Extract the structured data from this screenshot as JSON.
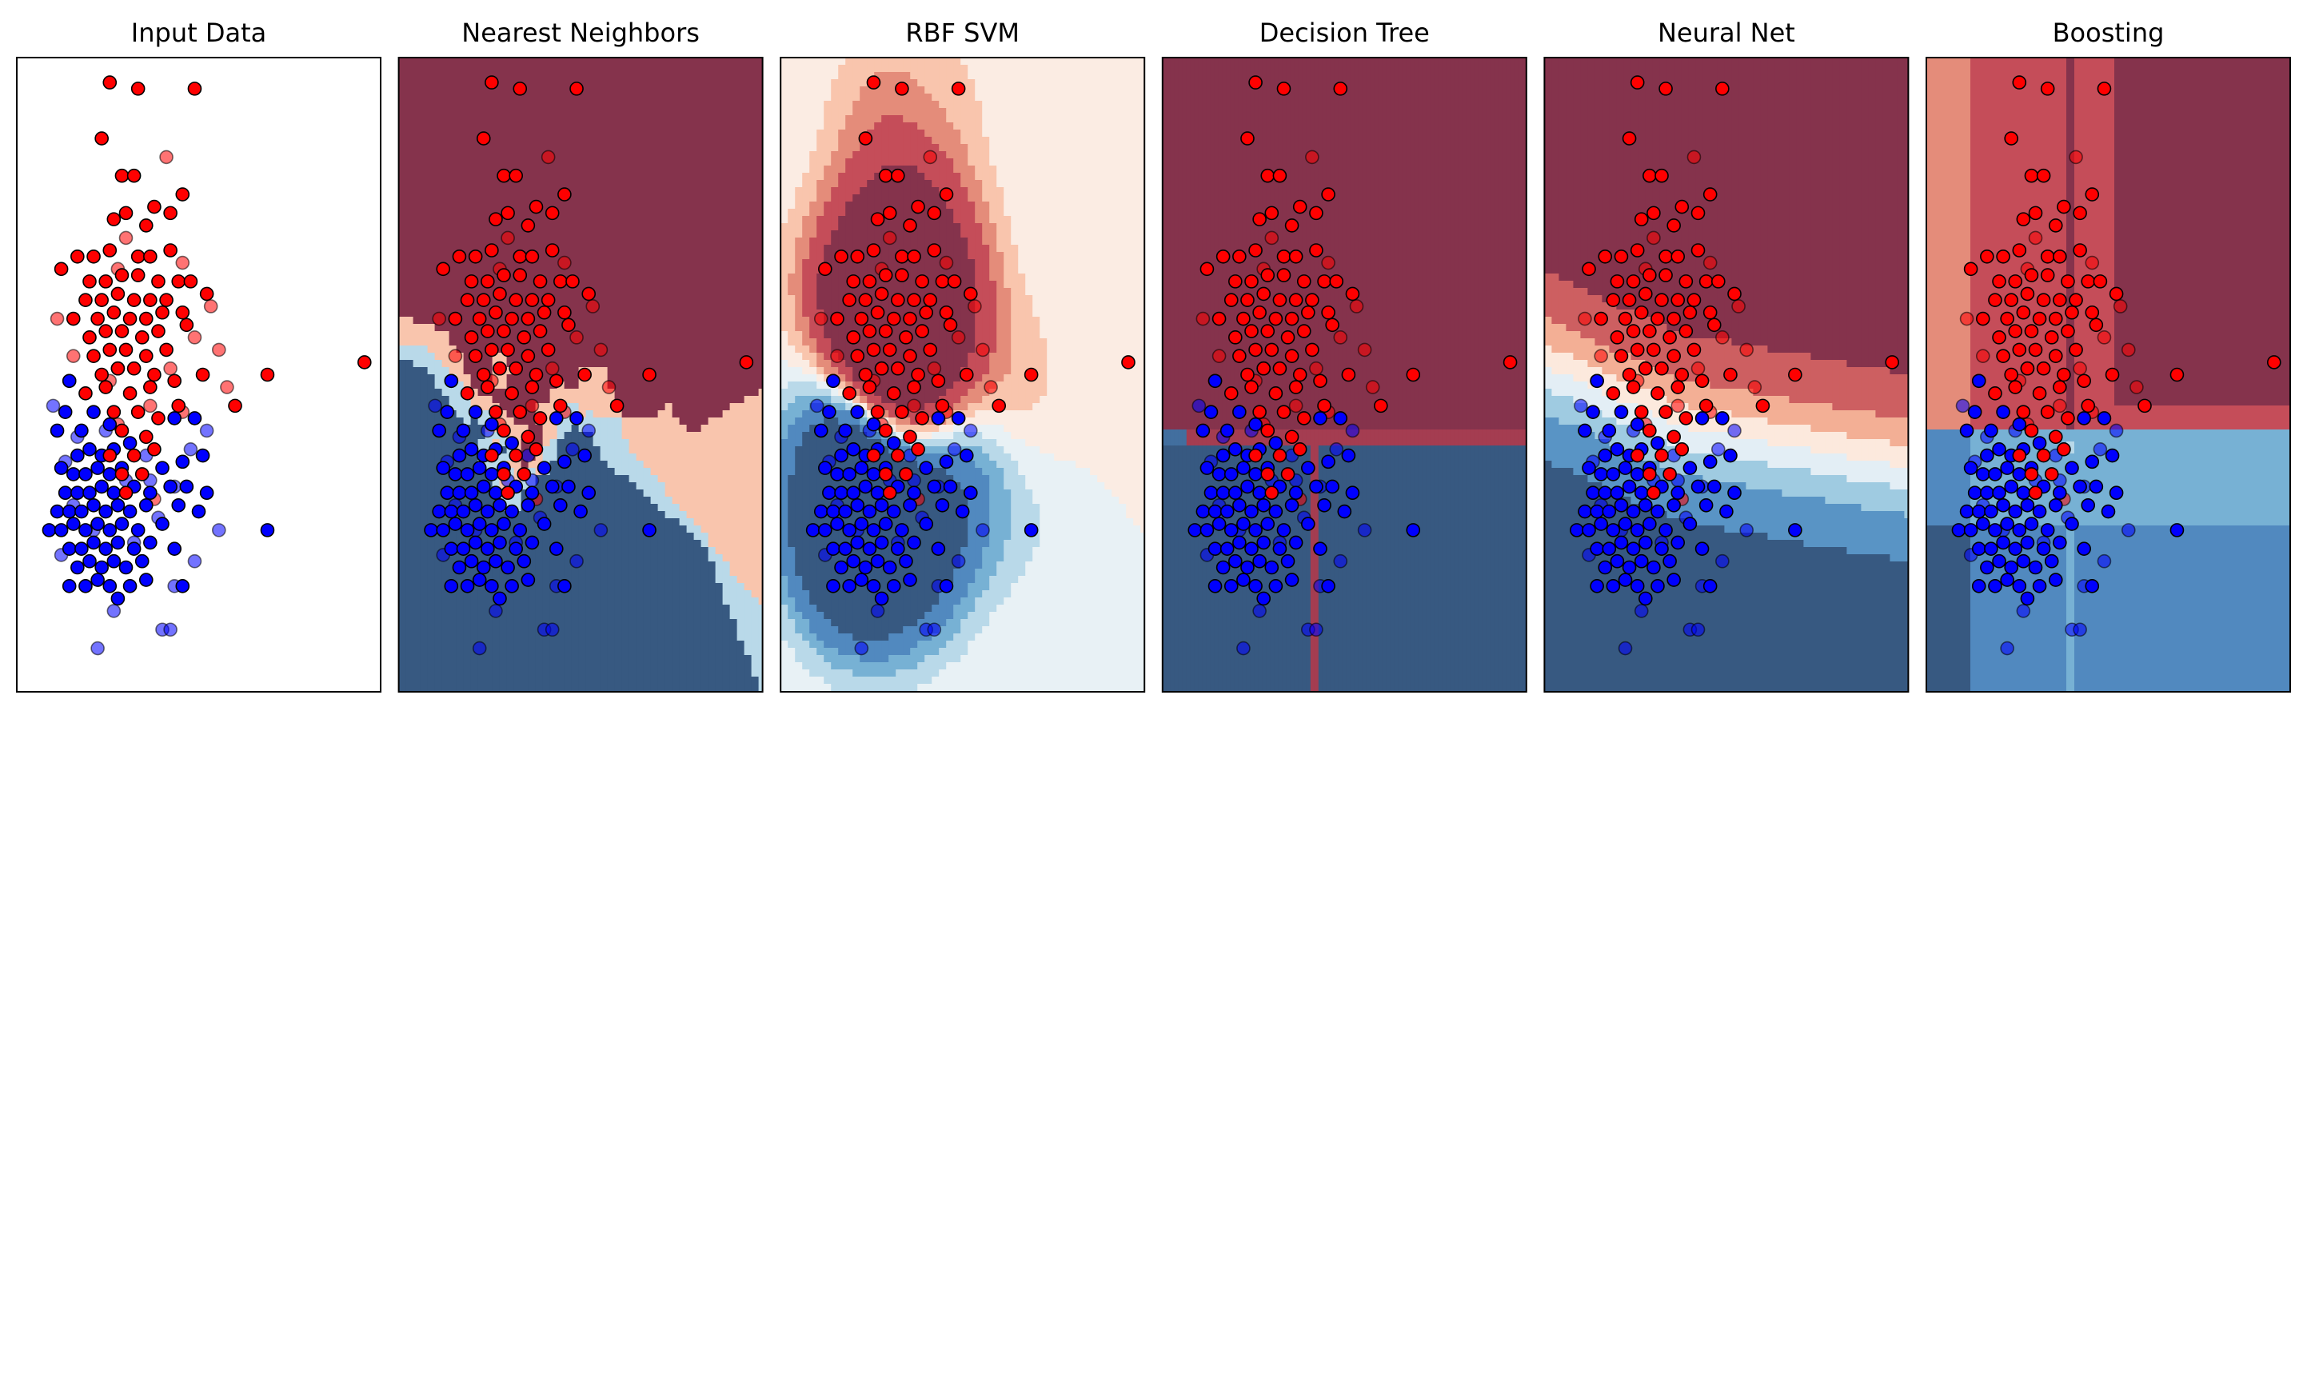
{
  "figure": {
    "panels": [
      {
        "title": "Input Data",
        "kind": "input"
      },
      {
        "title": "Nearest Neighbors",
        "kind": "knn"
      },
      {
        "title": "RBF SVM",
        "kind": "svm"
      },
      {
        "title": "Decision Tree",
        "kind": "tree"
      },
      {
        "title": "Neural Net",
        "kind": "mlp"
      },
      {
        "title": "Boosting",
        "kind": "boost"
      }
    ]
  },
  "chart_data": {
    "type": "scatter",
    "xlim": [
      -3.6,
      5.4
    ],
    "ylim": [
      -3.0,
      7.2
    ],
    "grid": false,
    "axes_ticks": false,
    "colors": {
      "class_0": "#0000ff",
      "class_1": "#ff0000",
      "edge": "#000000",
      "cmap": "RdBu",
      "red_dark": "#b03c50",
      "blue_dark": "#4575a8"
    },
    "series": [
      {
        "set": "train",
        "class": 1,
        "points": [
          [
            -1.3,
            6.8
          ],
          [
            -0.6,
            6.7
          ],
          [
            0.8,
            6.7
          ],
          [
            -1.5,
            5.9
          ],
          [
            -1.0,
            5.3
          ],
          [
            -0.7,
            5.3
          ],
          [
            0.5,
            5.0
          ],
          [
            -0.2,
            4.8
          ],
          [
            -1.2,
            4.6
          ],
          [
            -0.9,
            4.7
          ],
          [
            -0.4,
            4.5
          ],
          [
            0.2,
            4.7
          ],
          [
            -2.1,
            4.0
          ],
          [
            -1.7,
            4.0
          ],
          [
            -1.3,
            4.1
          ],
          [
            -0.6,
            4.0
          ],
          [
            -0.3,
            4.0
          ],
          [
            0.2,
            4.1
          ],
          [
            -2.5,
            3.8
          ],
          [
            -1.8,
            3.6
          ],
          [
            -1.4,
            3.6
          ],
          [
            -1.0,
            3.7
          ],
          [
            -0.6,
            3.7
          ],
          [
            -0.1,
            3.6
          ],
          [
            0.4,
            3.6
          ],
          [
            0.7,
            3.6
          ],
          [
            -1.9,
            3.3
          ],
          [
            -1.5,
            3.3
          ],
          [
            -1.1,
            3.4
          ],
          [
            -0.7,
            3.3
          ],
          [
            -0.3,
            3.3
          ],
          [
            0.1,
            3.3
          ],
          [
            1.1,
            3.4
          ],
          [
            -2.2,
            3.0
          ],
          [
            -1.6,
            3.0
          ],
          [
            -1.2,
            3.1
          ],
          [
            -0.8,
            3.0
          ],
          [
            -0.4,
            3.0
          ],
          [
            0.0,
            3.1
          ],
          [
            0.5,
            3.1
          ],
          [
            -1.8,
            2.7
          ],
          [
            -1.4,
            2.8
          ],
          [
            -1.0,
            2.8
          ],
          [
            -0.5,
            2.7
          ],
          [
            -0.1,
            2.8
          ],
          [
            0.6,
            2.9
          ],
          [
            -1.7,
            2.4
          ],
          [
            -1.3,
            2.5
          ],
          [
            -0.9,
            2.5
          ],
          [
            -0.4,
            2.4
          ],
          [
            0.1,
            2.5
          ],
          [
            -1.5,
            2.1
          ],
          [
            -1.1,
            2.2
          ],
          [
            -0.7,
            2.2
          ],
          [
            -0.2,
            2.1
          ],
          [
            0.3,
            2.0
          ],
          [
            1.0,
            2.1
          ],
          [
            2.6,
            2.1
          ],
          [
            5.0,
            2.3
          ],
          [
            -1.9,
            1.8
          ],
          [
            -1.4,
            1.9
          ],
          [
            -0.8,
            1.8
          ],
          [
            -0.3,
            1.9
          ],
          [
            0.4,
            1.6
          ],
          [
            1.8,
            1.6
          ],
          [
            -1.2,
            1.5
          ],
          [
            -0.6,
            1.5
          ],
          [
            -0.1,
            1.4
          ],
          [
            -1.0,
            1.2
          ],
          [
            -0.4,
            1.1
          ],
          [
            -1.3,
            0.8
          ],
          [
            -0.7,
            0.8
          ],
          [
            -0.2,
            0.9
          ],
          [
            -1.0,
            0.5
          ],
          [
            -0.5,
            0.5
          ],
          [
            -0.9,
            0.2
          ]
        ]
      },
      {
        "set": "train",
        "class": 0,
        "points": [
          [
            -2.3,
            2.0
          ],
          [
            -1.1,
            2.2
          ],
          [
            -2.4,
            1.5
          ],
          [
            -2.6,
            1.2
          ],
          [
            -2.0,
            1.2
          ],
          [
            -1.7,
            1.5
          ],
          [
            -1.3,
            1.3
          ],
          [
            -2.1,
            0.8
          ],
          [
            -1.8,
            0.9
          ],
          [
            -1.5,
            0.8
          ],
          [
            -1.2,
            0.9
          ],
          [
            -0.8,
            1.0
          ],
          [
            0.3,
            1.4
          ],
          [
            0.8,
            1.4
          ],
          [
            -2.5,
            0.6
          ],
          [
            -2.2,
            0.5
          ],
          [
            -1.9,
            0.5
          ],
          [
            -1.6,
            0.6
          ],
          [
            -1.3,
            0.5
          ],
          [
            -1.0,
            0.6
          ],
          [
            0.0,
            0.6
          ],
          [
            0.5,
            0.7
          ],
          [
            1.0,
            0.8
          ],
          [
            -2.4,
            0.2
          ],
          [
            -2.1,
            0.2
          ],
          [
            -1.8,
            0.2
          ],
          [
            -1.5,
            0.3
          ],
          [
            -1.2,
            0.2
          ],
          [
            -0.7,
            0.3
          ],
          [
            -0.3,
            0.2
          ],
          [
            0.2,
            0.3
          ],
          [
            0.6,
            0.3
          ],
          [
            1.1,
            0.2
          ],
          [
            -2.6,
            -0.1
          ],
          [
            -2.3,
            -0.1
          ],
          [
            -2.0,
            -0.1
          ],
          [
            -1.7,
            0.0
          ],
          [
            -1.4,
            -0.1
          ],
          [
            -1.1,
            0.0
          ],
          [
            -0.8,
            -0.1
          ],
          [
            -0.4,
            0.0
          ],
          [
            0.4,
            0.0
          ],
          [
            0.9,
            -0.1
          ],
          [
            -2.8,
            -0.4
          ],
          [
            -2.5,
            -0.4
          ],
          [
            -2.2,
            -0.3
          ],
          [
            -1.9,
            -0.4
          ],
          [
            -1.6,
            -0.3
          ],
          [
            -1.3,
            -0.4
          ],
          [
            -1.0,
            -0.3
          ],
          [
            -0.6,
            -0.4
          ],
          [
            0.0,
            -0.3
          ],
          [
            2.6,
            -0.4
          ],
          [
            -2.3,
            -0.7
          ],
          [
            -2.0,
            -0.7
          ],
          [
            -1.7,
            -0.6
          ],
          [
            -1.4,
            -0.7
          ],
          [
            -1.1,
            -0.6
          ],
          [
            -0.7,
            -0.7
          ],
          [
            -0.3,
            -0.6
          ],
          [
            0.3,
            -0.7
          ],
          [
            -2.1,
            -1.0
          ],
          [
            -1.8,
            -0.9
          ],
          [
            -1.5,
            -1.0
          ],
          [
            -1.2,
            -0.9
          ],
          [
            -0.9,
            -1.0
          ],
          [
            -0.5,
            -0.9
          ],
          [
            -2.3,
            -1.3
          ],
          [
            -1.9,
            -1.3
          ],
          [
            -1.6,
            -1.2
          ],
          [
            -1.3,
            -1.3
          ],
          [
            -0.8,
            -1.3
          ],
          [
            -0.4,
            -1.2
          ],
          [
            0.5,
            -1.3
          ],
          [
            -1.1,
            -1.5
          ]
        ]
      },
      {
        "set": "test",
        "class": 1,
        "points": [
          [
            0.1,
            5.6
          ],
          [
            -0.9,
            4.3
          ],
          [
            -1.1,
            3.8
          ],
          [
            0.5,
            3.9
          ],
          [
            -2.6,
            3.0
          ],
          [
            1.2,
            3.2
          ],
          [
            0.8,
            2.7
          ],
          [
            -2.2,
            2.4
          ],
          [
            1.4,
            2.5
          ],
          [
            -1.3,
            2.0
          ],
          [
            0.2,
            2.2
          ],
          [
            -2.3,
            2.0
          ],
          [
            1.6,
            1.9
          ],
          [
            0.5,
            1.5
          ],
          [
            -1.1,
            1.3
          ],
          [
            -0.3,
            1.6
          ],
          [
            -0.2,
            0.1
          ]
        ]
      },
      {
        "set": "test",
        "class": 0,
        "points": [
          [
            -2.7,
            1.6
          ],
          [
            -2.1,
            1.1
          ],
          [
            -2.4,
            0.7
          ],
          [
            -1.4,
            1.2
          ],
          [
            -0.9,
            0.4
          ],
          [
            0.7,
            0.9
          ],
          [
            1.1,
            1.2
          ],
          [
            -2.2,
            0.0
          ],
          [
            -0.3,
            0.4
          ],
          [
            0.3,
            0.3
          ],
          [
            -1.7,
            -0.4
          ],
          [
            -0.1,
            -0.2
          ],
          [
            0.8,
            -0.9
          ],
          [
            1.4,
            -0.4
          ],
          [
            -2.5,
            -0.8
          ],
          [
            0.3,
            -1.3
          ],
          [
            0.0,
            -2.0
          ],
          [
            0.2,
            -2.0
          ],
          [
            -1.6,
            -2.3
          ],
          [
            -1.2,
            -1.7
          ],
          [
            -0.7,
            -0.6
          ],
          [
            -0.4,
            0.8
          ]
        ]
      }
    ]
  }
}
